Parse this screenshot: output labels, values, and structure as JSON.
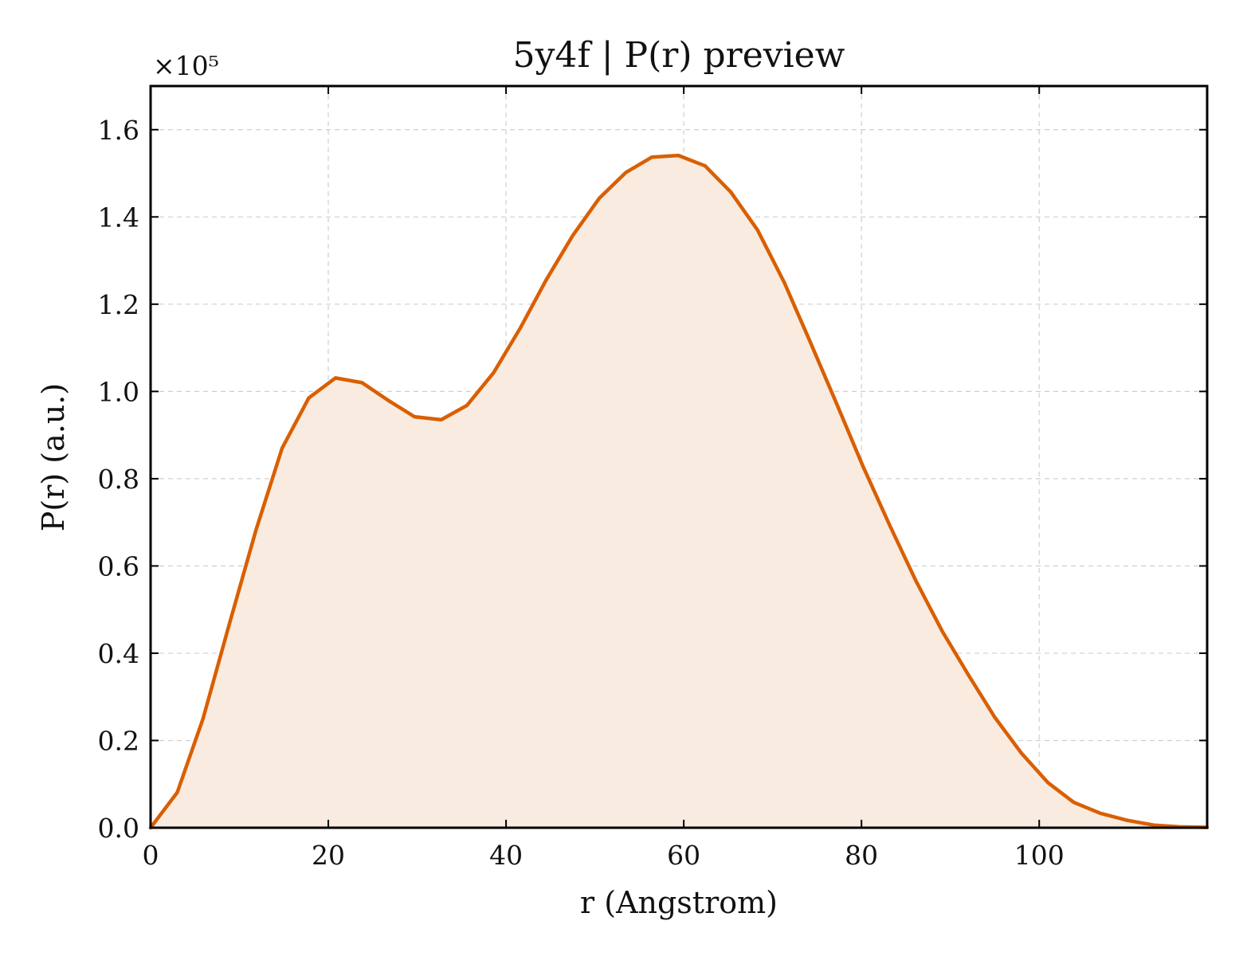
{
  "chart_data": {
    "type": "area",
    "title": "5y4f | P(r) preview",
    "xlabel": "r (Angstrom)",
    "ylabel": "P(r) (a.u.)",
    "y_multiplier_label": "×10⁵",
    "xlim": [
      0,
      118.9
    ],
    "ylim": [
      0,
      1.7
    ],
    "xticks": [
      0,
      20,
      40,
      60,
      80,
      100
    ],
    "yticks": [
      0.0,
      0.2,
      0.4,
      0.6,
      0.8,
      1.0,
      1.2,
      1.4,
      1.6
    ],
    "xtick_labels": [
      "0",
      "20",
      "40",
      "60",
      "80",
      "100"
    ],
    "ytick_labels": [
      "0.0",
      "0.2",
      "0.4",
      "0.6",
      "0.8",
      "1.0",
      "1.2",
      "1.4",
      "1.6"
    ],
    "grid": true,
    "line_color": "#d95f02",
    "fill_color": "#f9ebe0",
    "series": [
      {
        "x": [
          0,
          3.0,
          5.9,
          8.9,
          11.9,
          14.8,
          17.8,
          20.8,
          23.8,
          26.7,
          29.7,
          32.7,
          35.6,
          38.6,
          41.6,
          44.5,
          47.5,
          50.5,
          53.5,
          56.4,
          59.4,
          62.4,
          65.3,
          68.3,
          71.3,
          74.2,
          77.2,
          80.2,
          83.2,
          86.1,
          89.1,
          92.1,
          95.0,
          98.0,
          101.0,
          103.9,
          106.9,
          109.9,
          112.9,
          115.8,
          118.9
        ],
        "y": [
          0.0,
          0.081,
          0.25,
          0.47,
          0.685,
          0.87,
          0.985,
          1.031,
          1.02,
          0.98,
          0.942,
          0.935,
          0.968,
          1.043,
          1.145,
          1.255,
          1.357,
          1.443,
          1.502,
          1.537,
          1.541,
          1.517,
          1.457,
          1.37,
          1.25,
          1.115,
          0.972,
          0.827,
          0.692,
          0.567,
          0.45,
          0.348,
          0.253,
          0.171,
          0.103,
          0.058,
          0.033,
          0.017,
          0.006,
          0.002,
          0.001
        ]
      }
    ]
  }
}
